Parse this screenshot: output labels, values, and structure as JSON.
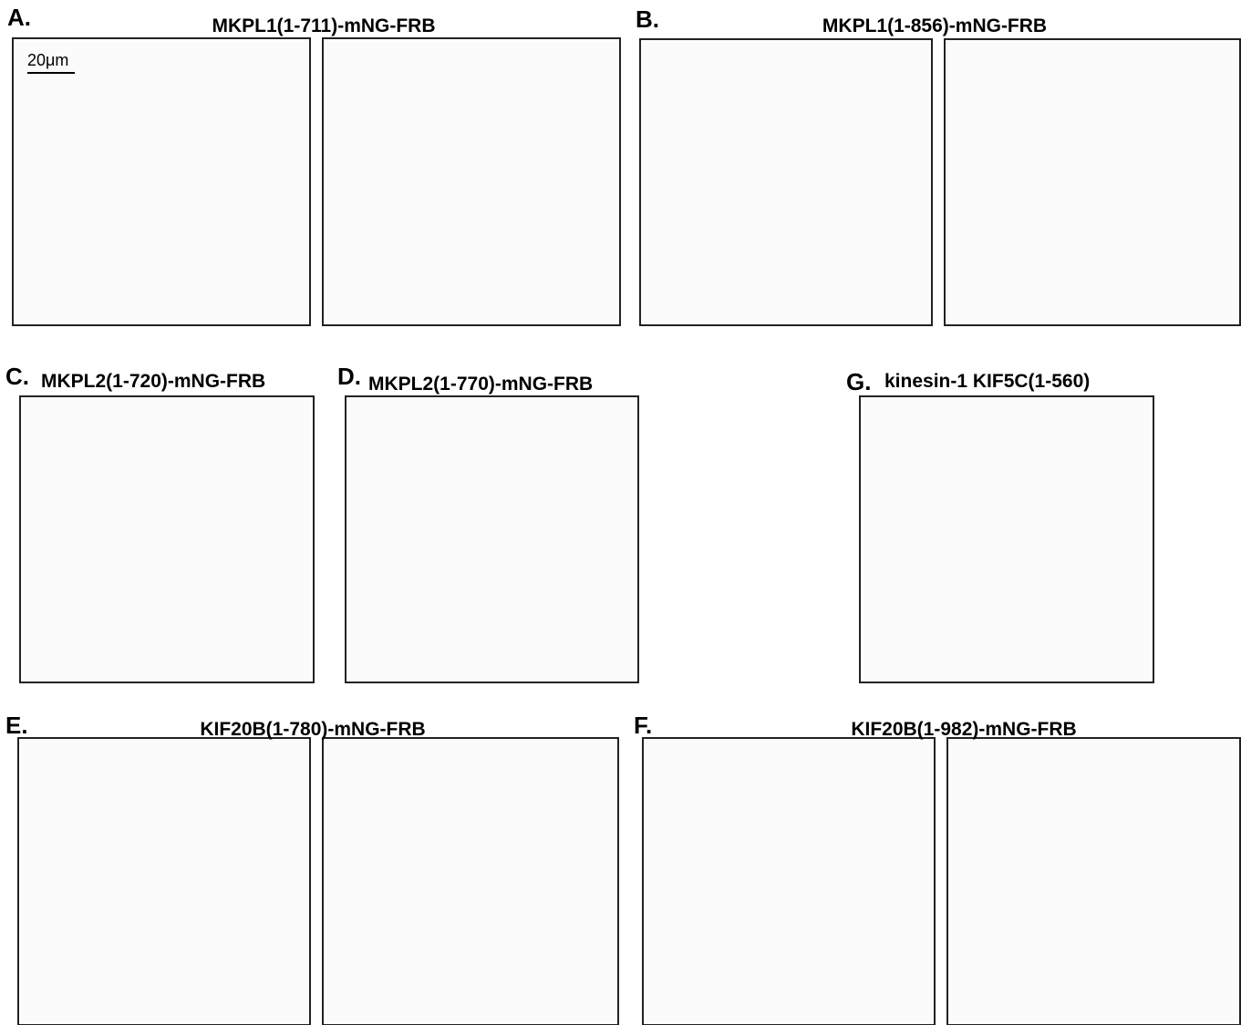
{
  "panels": [
    {
      "label": "A.",
      "title": "MKPL1(1-711)-mNG-FRB"
    },
    {
      "label": "B.",
      "title": "MKPL1(1-856)-mNG-FRB"
    },
    {
      "label": "C.",
      "title": "MKPL2(1-720)-mNG-FRB"
    },
    {
      "label": "D.",
      "title": "MKPL2(1-770)-mNG-FRB"
    },
    {
      "label": "G.",
      "title": "kinesin-1 KIF5C(1-560)"
    },
    {
      "label": "E.",
      "title": "KIF20B(1-780)-mNG-FRB"
    },
    {
      "label": "F.",
      "title": "KIF20B(1-982)-mNG-FRB"
    }
  ],
  "scale_bar": "20μm"
}
